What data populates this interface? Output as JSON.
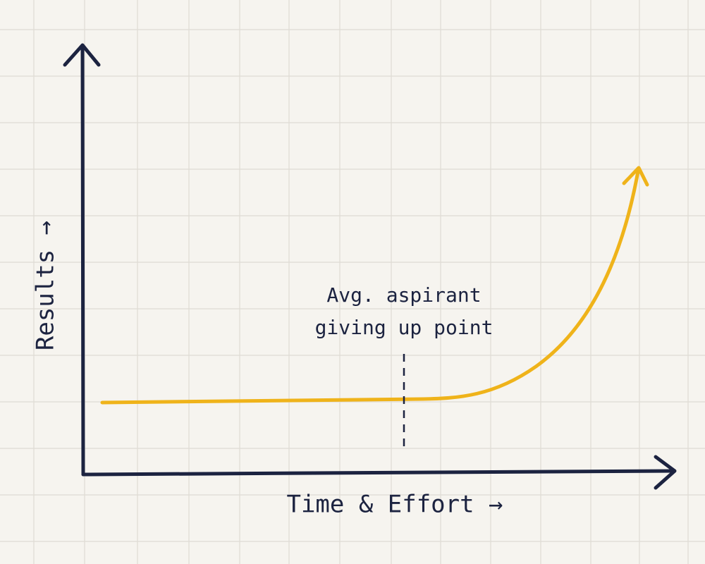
{
  "diagram": {
    "y_axis_label": "Results →",
    "x_axis_label": "Time & Effort →",
    "annotation": {
      "lines": [
        "Avg. aspirant",
        "giving up point"
      ]
    }
  }
}
